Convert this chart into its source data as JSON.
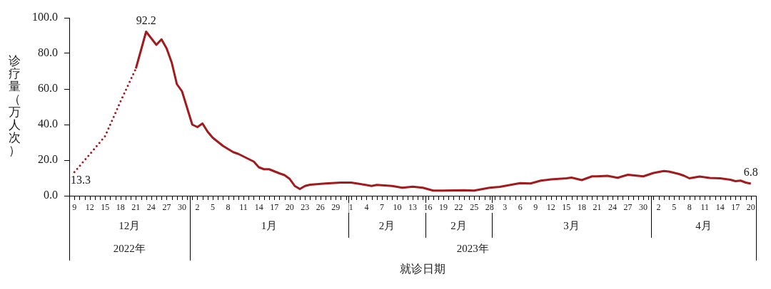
{
  "chart_data": {
    "type": "line",
    "xlabel": "就诊日期",
    "ylabel": "诊疗量（万人次）",
    "marker": "none",
    "xlim": [
      "2022-12-08",
      "2023-04-21"
    ],
    "ylim": [
      0,
      100
    ],
    "yticks": [
      {
        "value": 0,
        "label": "0.0"
      },
      {
        "value": 20,
        "label": "20.0"
      },
      {
        "value": 40,
        "label": "40.0"
      },
      {
        "value": 60,
        "label": "60.0"
      },
      {
        "value": 80,
        "label": "80.0"
      },
      {
        "value": 100,
        "label": "100.0"
      }
    ],
    "xticks": [
      {
        "value": "2022-12-09",
        "label": "9"
      },
      {
        "value": "2022-12-12",
        "label": "12"
      },
      {
        "value": "2022-12-15",
        "label": "15"
      },
      {
        "value": "2022-12-18",
        "label": "18"
      },
      {
        "value": "2022-12-21",
        "label": "21"
      },
      {
        "value": "2022-12-24",
        "label": "24"
      },
      {
        "value": "2022-12-27",
        "label": "27"
      },
      {
        "value": "2022-12-30",
        "label": "30"
      },
      {
        "value": "2023-01-02",
        "label": "2"
      },
      {
        "value": "2023-01-05",
        "label": "5"
      },
      {
        "value": "2023-01-08",
        "label": "8"
      },
      {
        "value": "2023-01-11",
        "label": "11"
      },
      {
        "value": "2023-01-14",
        "label": "14"
      },
      {
        "value": "2023-01-17",
        "label": "17"
      },
      {
        "value": "2023-01-20",
        "label": "20"
      },
      {
        "value": "2023-01-23",
        "label": "23"
      },
      {
        "value": "2023-01-26",
        "label": "26"
      },
      {
        "value": "2023-01-29",
        "label": "29"
      },
      {
        "value": "2023-02-01",
        "label": "1"
      },
      {
        "value": "2023-02-04",
        "label": "4"
      },
      {
        "value": "2023-02-07",
        "label": "7"
      },
      {
        "value": "2023-02-10",
        "label": "10"
      },
      {
        "value": "2023-02-13",
        "label": "13"
      },
      {
        "value": "2023-02-16",
        "label": "16"
      },
      {
        "value": "2023-02-19",
        "label": "19"
      },
      {
        "value": "2023-02-22",
        "label": "22"
      },
      {
        "value": "2023-02-25",
        "label": "25"
      },
      {
        "value": "2023-02-28",
        "label": "28"
      },
      {
        "value": "2023-03-03",
        "label": "3"
      },
      {
        "value": "2023-03-06",
        "label": "6"
      },
      {
        "value": "2023-03-09",
        "label": "9"
      },
      {
        "value": "2023-03-12",
        "label": "12"
      },
      {
        "value": "2023-03-15",
        "label": "15"
      },
      {
        "value": "2023-03-18",
        "label": "18"
      },
      {
        "value": "2023-03-21",
        "label": "21"
      },
      {
        "value": "2023-03-24",
        "label": "24"
      },
      {
        "value": "2023-03-27",
        "label": "27"
      },
      {
        "value": "2023-03-30",
        "label": "30"
      },
      {
        "value": "2023-04-02",
        "label": "2"
      },
      {
        "value": "2023-04-05",
        "label": "5"
      },
      {
        "value": "2023-04-08",
        "label": "8"
      },
      {
        "value": "2023-04-11",
        "label": "11"
      },
      {
        "value": "2023-04-14",
        "label": "14"
      },
      {
        "value": "2023-04-17",
        "label": "17"
      },
      {
        "value": "2023-04-20",
        "label": "20"
      },
      {
        "value": "2022-12-10",
        "label": null
      },
      {
        "value": "2022-12-11",
        "label": null
      },
      {
        "value": "2022-12-13",
        "label": null
      },
      {
        "value": "2022-12-14",
        "label": null
      },
      {
        "value": "2022-12-16",
        "label": null
      },
      {
        "value": "2022-12-17",
        "label": null
      },
      {
        "value": "2022-12-19",
        "label": null
      },
      {
        "value": "2022-12-20",
        "label": null
      },
      {
        "value": "2022-12-22",
        "label": null
      },
      {
        "value": "2022-12-23",
        "label": null
      },
      {
        "value": "2022-12-25",
        "label": null
      },
      {
        "value": "2022-12-26",
        "label": null
      },
      {
        "value": "2022-12-28",
        "label": null
      },
      {
        "value": "2022-12-29",
        "label": null
      },
      {
        "value": "2022-12-31",
        "label": null
      },
      {
        "value": "2023-01-01",
        "label": null
      },
      {
        "value": "2023-01-03",
        "label": null
      },
      {
        "value": "2023-01-04",
        "label": null
      },
      {
        "value": "2023-01-06",
        "label": null
      },
      {
        "value": "2023-01-07",
        "label": null
      },
      {
        "value": "2023-01-09",
        "label": null
      },
      {
        "value": "2023-01-10",
        "label": null
      },
      {
        "value": "2023-01-12",
        "label": null
      },
      {
        "value": "2023-01-13",
        "label": null
      },
      {
        "value": "2023-01-15",
        "label": null
      },
      {
        "value": "2023-01-16",
        "label": null
      },
      {
        "value": "2023-01-18",
        "label": null
      },
      {
        "value": "2023-01-19",
        "label": null
      },
      {
        "value": "2023-01-21",
        "label": null
      },
      {
        "value": "2023-01-22",
        "label": null
      },
      {
        "value": "2023-01-24",
        "label": null
      },
      {
        "value": "2023-01-25",
        "label": null
      },
      {
        "value": "2023-01-27",
        "label": null
      },
      {
        "value": "2023-01-28",
        "label": null
      },
      {
        "value": "2023-01-30",
        "label": null
      },
      {
        "value": "2023-01-31",
        "label": null
      },
      {
        "value": "2023-02-02",
        "label": null
      },
      {
        "value": "2023-02-03",
        "label": null
      },
      {
        "value": "2023-02-05",
        "label": null
      },
      {
        "value": "2023-02-06",
        "label": null
      },
      {
        "value": "2023-02-08",
        "label": null
      },
      {
        "value": "2023-02-09",
        "label": null
      },
      {
        "value": "2023-02-11",
        "label": null
      },
      {
        "value": "2023-02-12",
        "label": null
      },
      {
        "value": "2023-02-14",
        "label": null
      },
      {
        "value": "2023-02-15",
        "label": null
      },
      {
        "value": "2023-02-17",
        "label": null
      },
      {
        "value": "2023-02-18",
        "label": null
      },
      {
        "value": "2023-02-20",
        "label": null
      },
      {
        "value": "2023-02-21",
        "label": null
      },
      {
        "value": "2023-02-23",
        "label": null
      },
      {
        "value": "2023-02-24",
        "label": null
      },
      {
        "value": "2023-02-26",
        "label": null
      },
      {
        "value": "2023-02-27",
        "label": null
      },
      {
        "value": "2023-03-01",
        "label": null
      },
      {
        "value": "2023-03-02",
        "label": null
      },
      {
        "value": "2023-03-04",
        "label": null
      },
      {
        "value": "2023-03-05",
        "label": null
      },
      {
        "value": "2023-03-07",
        "label": null
      },
      {
        "value": "2023-03-08",
        "label": null
      },
      {
        "value": "2023-03-10",
        "label": null
      },
      {
        "value": "2023-03-11",
        "label": null
      },
      {
        "value": "2023-03-13",
        "label": null
      },
      {
        "value": "2023-03-14",
        "label": null
      },
      {
        "value": "2023-03-16",
        "label": null
      },
      {
        "value": "2023-03-17",
        "label": null
      },
      {
        "value": "2023-03-19",
        "label": null
      },
      {
        "value": "2023-03-20",
        "label": null
      },
      {
        "value": "2023-03-22",
        "label": null
      },
      {
        "value": "2023-03-23",
        "label": null
      },
      {
        "value": "2023-03-25",
        "label": null
      },
      {
        "value": "2023-03-26",
        "label": null
      },
      {
        "value": "2023-03-28",
        "label": null
      },
      {
        "value": "2023-03-29",
        "label": null
      },
      {
        "value": "2023-03-31",
        "label": null
      },
      {
        "value": "2023-04-01",
        "label": null
      },
      {
        "value": "2023-04-03",
        "label": null
      },
      {
        "value": "2023-04-04",
        "label": null
      },
      {
        "value": "2023-04-06",
        "label": null
      },
      {
        "value": "2023-04-07",
        "label": null
      },
      {
        "value": "2023-04-09",
        "label": null
      },
      {
        "value": "2023-04-10",
        "label": null
      },
      {
        "value": "2023-04-12",
        "label": null
      },
      {
        "value": "2023-04-13",
        "label": null
      },
      {
        "value": "2023-04-15",
        "label": null
      },
      {
        "value": "2023-04-16",
        "label": null
      },
      {
        "value": "2023-04-18",
        "label": null
      },
      {
        "value": "2023-04-19",
        "label": null
      }
    ],
    "annotations": [
      "12月",
      "1月",
      "2月",
      "2月",
      "3月",
      "4月",
      "2022年",
      "2023年"
    ],
    "series": [
      {
        "color": "#a31a1d",
        "line_style": "dotted",
        "x": [
          "2022-12-09",
          "2022-12-12",
          "2022-12-15",
          "2022-12-18",
          "2022-12-21"
        ],
        "values": [
          13.3,
          23.3,
          33.5,
          53.0,
          71.5
        ],
        "value_labels": [
          "13.3",
          null,
          null,
          null,
          null
        ]
      },
      {
        "color": "#a31a1d",
        "line_style": "solid",
        "x": [
          "2022-12-21",
          "2022-12-23",
          "2022-12-25",
          "2022-12-26",
          "2022-12-27",
          "2022-12-28",
          "2022-12-29",
          "2022-12-30",
          "2023-01-01",
          "2023-01-02",
          "2023-01-03",
          "2023-01-04",
          "2023-01-05",
          "2023-01-07",
          "2023-01-09",
          "2023-01-10",
          "2023-01-13",
          "2023-01-14",
          "2023-01-15",
          "2023-01-16",
          "2023-01-18",
          "2023-01-19",
          "2023-01-20",
          "2023-01-21",
          "2023-01-22",
          "2023-01-23",
          "2023-01-24",
          "2023-01-27",
          "2023-01-30",
          "2023-02-01",
          "2023-02-03",
          "2023-02-05",
          "2023-02-06",
          "2023-02-09",
          "2023-02-11",
          "2023-02-13",
          "2023-02-15",
          "2023-02-17",
          "2023-02-19",
          "2023-02-23",
          "2023-02-25",
          "2023-02-28",
          "2023-03-02",
          "2023-03-06",
          "2023-03-08",
          "2023-03-10",
          "2023-03-12",
          "2023-03-15",
          "2023-03-16",
          "2023-03-18",
          "2023-03-20",
          "2023-03-21",
          "2023-03-23",
          "2023-03-25",
          "2023-03-27",
          "2023-03-29",
          "2023-03-30",
          "2023-04-01",
          "2023-04-03",
          "2023-04-04",
          "2023-04-06",
          "2023-04-07",
          "2023-04-08",
          "2023-04-10",
          "2023-04-12",
          "2023-04-14",
          "2023-04-16",
          "2023-04-17",
          "2023-04-18",
          "2023-04-19",
          "2023-04-20"
        ],
        "values": [
          71.5,
          92.2,
          84.8,
          87.9,
          82.8,
          74.8,
          62.7,
          58.7,
          40.0,
          38.6,
          40.6,
          36.0,
          32.6,
          28.0,
          24.5,
          23.5,
          19.2,
          16.0,
          14.9,
          14.9,
          12.6,
          11.6,
          9.5,
          5.5,
          3.8,
          5.5,
          6.2,
          6.9,
          7.4,
          7.4,
          6.5,
          5.5,
          6.1,
          5.5,
          4.5,
          5.1,
          4.5,
          2.9,
          2.9,
          3.1,
          2.9,
          4.5,
          5.0,
          7.1,
          6.9,
          8.5,
          9.2,
          9.8,
          10.2,
          8.8,
          10.9,
          10.9,
          11.2,
          10.1,
          11.8,
          11.2,
          10.9,
          12.8,
          13.9,
          13.6,
          12.2,
          11.2,
          9.8,
          10.8,
          10.0,
          9.8,
          9.0,
          8.2,
          8.5,
          7.4,
          6.8
        ],
        "value_labels": [
          null,
          "92.2",
          null,
          null,
          null,
          null,
          null,
          null,
          null,
          null,
          null,
          null,
          null,
          null,
          null,
          null,
          null,
          null,
          null,
          null,
          null,
          null,
          null,
          null,
          null,
          null,
          null,
          null,
          null,
          null,
          null,
          null,
          null,
          null,
          null,
          null,
          null,
          null,
          null,
          null,
          null,
          null,
          null,
          null,
          null,
          null,
          null,
          null,
          null,
          null,
          null,
          null,
          null,
          null,
          null,
          null,
          null,
          null,
          null,
          null,
          null,
          null,
          null,
          null,
          null,
          null,
          null,
          null,
          null,
          null,
          "6.8"
        ]
      }
    ]
  }
}
